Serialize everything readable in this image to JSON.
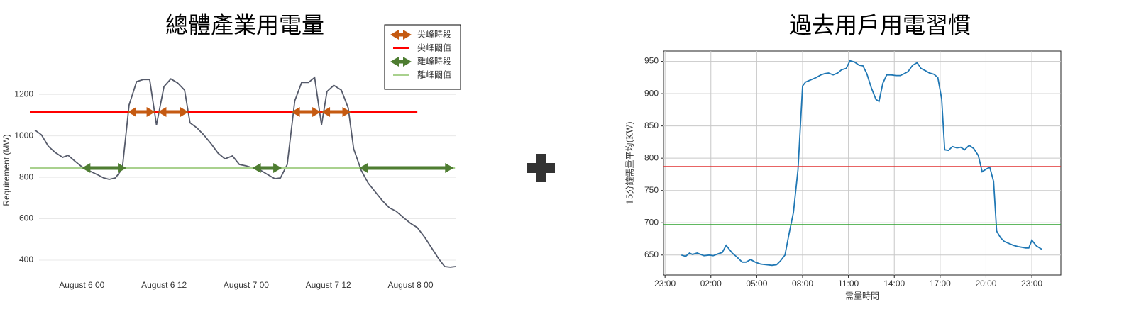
{
  "chart_data": [
    {
      "type": "line",
      "title": "總體產業用電量",
      "ylabel": "Requirement (MW)",
      "color": "#555a6a",
      "x": [
        -6.9,
        -5.9,
        -4.9,
        -3.9,
        -2.8,
        -2,
        -0.9,
        0,
        1.1,
        2.2,
        3.2,
        4,
        4.9,
        5.9,
        6.9,
        8,
        9,
        9.9,
        10.9,
        12,
        13,
        14,
        15,
        15.8,
        16.8,
        17.8,
        18.9,
        19.9,
        20.9,
        22,
        23,
        24,
        25.1,
        26.1,
        27.1,
        28.2,
        29,
        30,
        31.1,
        32.1,
        33.1,
        34,
        35,
        35.8,
        36.8,
        37.9,
        38.9,
        39.7,
        40.8,
        41.8,
        42.8,
        43.9,
        44.9,
        45.9,
        47,
        48,
        49,
        50.1,
        51.1,
        52.1,
        53,
        53.8,
        54.6
      ],
      "values": [
        1029,
        1005,
        950,
        920,
        896,
        906,
        875,
        851,
        831,
        814,
        797,
        790,
        797,
        841,
        1149,
        1262,
        1272,
        1272,
        1053,
        1238,
        1275,
        1255,
        1221,
        1063,
        1039,
        1005,
        961,
        916,
        889,
        903,
        862,
        855,
        844,
        834,
        814,
        793,
        797,
        862,
        1169,
        1258,
        1258,
        1282,
        1053,
        1214,
        1244,
        1221,
        1135,
        937,
        834,
        773,
        732,
        687,
        653,
        636,
        605,
        578,
        557,
        509,
        458,
        407,
        369,
        366,
        369
      ],
      "xlim": [
        -7.6,
        55.1
      ],
      "ylim": [
        340,
        1300
      ],
      "xticks": [
        {
          "value": 0,
          "label": "August  6 00"
        },
        {
          "value": 12,
          "label": "August  6 12"
        },
        {
          "value": 24,
          "label": "August  7 00"
        },
        {
          "value": 36,
          "label": "August  7 12"
        },
        {
          "value": 48,
          "label": "August  8 00"
        }
      ],
      "yticks": [
        400,
        600,
        800,
        1000,
        1200
      ],
      "grid": "y",
      "legend": "upper right",
      "periods": [
        {
          "name": "尖峰時段",
          "color": "#c55a11",
          "ranges": [
            [
              6.7,
              10.7
            ],
            [
              11.1,
              15.6
            ],
            [
              30.6,
              34.9
            ],
            [
              35,
              39.3
            ]
          ]
        },
        {
          "name": "離峰時段",
          "color": "#4e7d31",
          "ranges": [
            [
              0,
              6.5
            ],
            [
              24.9,
              29.2
            ],
            [
              40.5,
              54.3
            ]
          ]
        }
      ],
      "thresholds": [
        {
          "name": "尖峰閾值",
          "value": 1115,
          "color": "#ff0000",
          "xrange": [
            -7.6,
            49
          ]
        },
        {
          "name": "離峰閾值",
          "value": 845,
          "color": "#a9d18e",
          "xrange": [
            -7.6,
            54.5
          ]
        }
      ]
    },
    {
      "type": "line",
      "title": "過去用戶用電習慣",
      "xlabel": "需量時間",
      "ylabel": "15分鐘需量平均(KW)",
      "color": "#1f77b4",
      "x": [
        1.07,
        1.35,
        1.6,
        1.8,
        2.1,
        2.55,
        2.9,
        3.15,
        3.5,
        3.75,
        4.0,
        4.4,
        4.7,
        5.05,
        5.3,
        5.6,
        5.9,
        6.25,
        6.6,
        7.0,
        7.3,
        7.55,
        7.85,
        8.1,
        8.4,
        8.7,
        9.0,
        9.2,
        9.5,
        9.9,
        10.2,
        10.45,
        10.7,
        11.0,
        11.3,
        11.55,
        11.85,
        12.1,
        12.4,
        12.7,
        12.95,
        13.2,
        13.5,
        13.8,
        14.0,
        14.25,
        14.5,
        14.8,
        15.1,
        15.4,
        15.65,
        15.9,
        16.2,
        16.5,
        16.75,
        17.0,
        17.3,
        17.6,
        17.85,
        18.1,
        18.3,
        18.55,
        18.8,
        19.1,
        19.35,
        19.6,
        19.9,
        20.2,
        20.5,
        20.75,
        21.0,
        21.25,
        21.5,
        21.7,
        21.95,
        22.2,
        22.5,
        22.8,
        23.1,
        23.35,
        23.6,
        23.8,
        24.0,
        24.3,
        24.65
      ],
      "values": [
        650,
        648,
        653,
        651,
        653,
        649,
        650,
        649,
        652,
        654,
        665,
        653,
        647,
        639,
        639,
        643,
        639,
        636,
        635,
        634,
        635,
        641,
        650,
        681,
        716,
        782,
        912,
        918,
        921,
        925,
        929,
        931,
        932,
        929,
        932,
        937,
        939,
        951,
        949,
        944,
        943,
        931,
        909,
        891,
        888,
        916,
        929,
        929,
        928,
        928,
        931,
        934,
        944,
        948,
        939,
        936,
        932,
        930,
        925,
        892,
        813,
        812,
        818,
        816,
        817,
        813,
        820,
        815,
        804,
        779,
        783,
        786,
        764,
        687,
        677,
        671,
        668,
        665,
        663,
        662,
        661,
        661,
        673,
        664,
        659
      ],
      "xlim": [
        -0.1,
        25.9
      ],
      "ylim": [
        619,
        966
      ],
      "xticks": [
        {
          "value": 0,
          "label": "23:00"
        },
        {
          "value": 3,
          "label": "02:00"
        },
        {
          "value": 6,
          "label": "05:00"
        },
        {
          "value": 9,
          "label": "08:00"
        },
        {
          "value": 12,
          "label": "11:00"
        },
        {
          "value": 15,
          "label": "14:00"
        },
        {
          "value": 18,
          "label": "17:00"
        },
        {
          "value": 21,
          "label": "20:00"
        },
        {
          "value": 24,
          "label": "23:00"
        }
      ],
      "yticks": [
        650,
        700,
        750,
        800,
        850,
        900,
        950
      ],
      "grid": "both",
      "thresholds": [
        {
          "value": 787,
          "color": "#e03030"
        },
        {
          "value": 697,
          "color": "#2ca02c"
        }
      ]
    }
  ]
}
